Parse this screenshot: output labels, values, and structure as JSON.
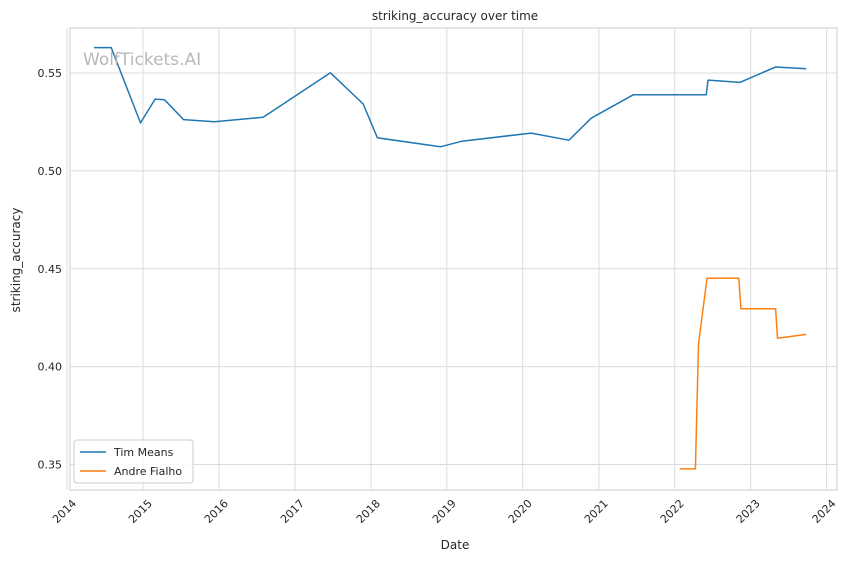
{
  "chart_data": {
    "type": "line",
    "title": "striking_accuracy over time",
    "xlabel": "Date",
    "ylabel": "striking_accuracy",
    "watermark": "WolfTickets.AI",
    "x_ticks": [
      "2014",
      "2015",
      "2016",
      "2017",
      "2018",
      "2019",
      "2020",
      "2021",
      "2022",
      "2023",
      "2024"
    ],
    "y_ticks": [
      "0.35",
      "0.40",
      "0.45",
      "0.50",
      "0.55"
    ],
    "ylim": [
      0.337,
      0.573
    ],
    "xlim": [
      "2014-01-15",
      "2024-02-20"
    ],
    "grid": true,
    "legend_position": "lower-left",
    "series": [
      {
        "name": "Tim Means",
        "color": "#1f77b4",
        "points": [
          [
            "2014-05-10",
            0.563
          ],
          [
            "2014-08-01",
            0.563
          ],
          [
            "2014-12-20",
            0.5245
          ],
          [
            "2015-02-28",
            0.5367
          ],
          [
            "2015-04-15",
            0.5363
          ],
          [
            "2015-07-15",
            0.5262
          ],
          [
            "2015-12-10",
            0.5251
          ],
          [
            "2016-08-01",
            0.5274
          ],
          [
            "2017-06-20",
            0.5501
          ],
          [
            "2017-11-25",
            0.5342
          ],
          [
            "2018-02-01",
            0.5169
          ],
          [
            "2018-12-01",
            0.5123
          ],
          [
            "2019-03-15",
            0.5152
          ],
          [
            "2020-02-10",
            0.5193
          ],
          [
            "2020-08-10",
            0.5157
          ],
          [
            "2020-11-25",
            0.5269
          ],
          [
            "2021-06-15",
            0.5389
          ],
          [
            "2022-06-01",
            0.5389
          ],
          [
            "2022-06-10",
            0.5464
          ],
          [
            "2022-11-10",
            0.5452
          ],
          [
            "2023-05-01",
            0.5531
          ],
          [
            "2023-09-25",
            0.5522
          ]
        ]
      },
      {
        "name": "Andre Fialho",
        "color": "#ff7f0e",
        "points": [
          [
            "2022-01-25",
            0.3478
          ],
          [
            "2022-04-10",
            0.3478
          ],
          [
            "2022-04-25",
            0.4115
          ],
          [
            "2022-06-05",
            0.4452
          ],
          [
            "2022-11-05",
            0.4452
          ],
          [
            "2022-11-15",
            0.4296
          ],
          [
            "2023-05-01",
            0.4296
          ],
          [
            "2023-05-10",
            0.4145
          ],
          [
            "2023-09-25",
            0.4165
          ]
        ]
      }
    ]
  }
}
